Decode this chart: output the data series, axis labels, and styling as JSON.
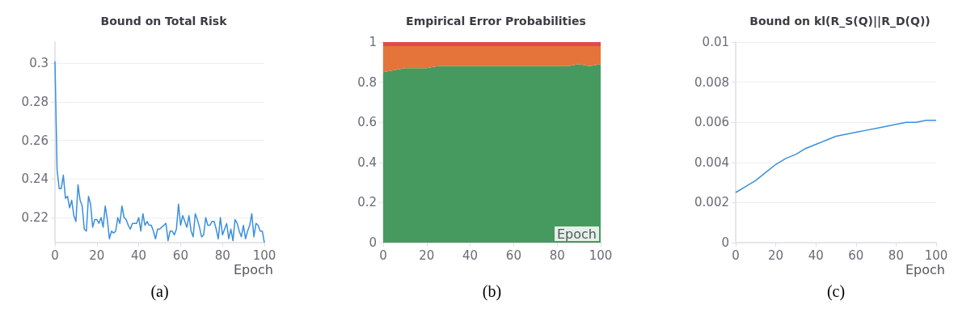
{
  "chart_data": [
    {
      "type": "line",
      "title": "Bound on Total Risk",
      "xlabel": "Epoch",
      "annotations": [
        "(a)"
      ],
      "xlim": [
        0,
        100
      ],
      "xticks": [
        0,
        20,
        40,
        60,
        80,
        100
      ],
      "ylim": [
        0.207,
        0.311
      ],
      "yticks": [
        0.22,
        0.24,
        0.26,
        0.28,
        0.3
      ],
      "grid": "y",
      "marker": "none",
      "line_style": "solid",
      "x": [
        0,
        1,
        2,
        3,
        4,
        5,
        6,
        7,
        8,
        9,
        10,
        11,
        12,
        13,
        14,
        15,
        16,
        17,
        18,
        19,
        20,
        21,
        22,
        23,
        24,
        25,
        26,
        27,
        28,
        29,
        30,
        31,
        32,
        33,
        34,
        35,
        36,
        37,
        38,
        39,
        40,
        41,
        42,
        43,
        44,
        45,
        46,
        47,
        48,
        49,
        50,
        51,
        52,
        53,
        54,
        55,
        56,
        57,
        58,
        59,
        60,
        61,
        62,
        63,
        64,
        65,
        66,
        67,
        68,
        69,
        70,
        71,
        72,
        73,
        74,
        75,
        76,
        77,
        78,
        79,
        80,
        81,
        82,
        83,
        84,
        85,
        86,
        87,
        88,
        89,
        90,
        91,
        92,
        93,
        94,
        95,
        96,
        97,
        98,
        99,
        100
      ],
      "series": [
        {
          "color": "#3b8fdc",
          "values": [
            0.301,
            0.245,
            0.235,
            0.235,
            0.242,
            0.23,
            0.231,
            0.225,
            0.229,
            0.221,
            0.218,
            0.237,
            0.229,
            0.226,
            0.214,
            0.213,
            0.231,
            0.227,
            0.215,
            0.219,
            0.219,
            0.217,
            0.22,
            0.215,
            0.226,
            0.219,
            0.209,
            0.213,
            0.212,
            0.213,
            0.22,
            0.217,
            0.226,
            0.22,
            0.219,
            0.216,
            0.214,
            0.217,
            0.217,
            0.217,
            0.22,
            0.213,
            0.222,
            0.216,
            0.218,
            0.216,
            0.216,
            0.213,
            0.209,
            0.214,
            0.214,
            0.215,
            0.216,
            0.217,
            0.208,
            0.213,
            0.213,
            0.211,
            0.214,
            0.227,
            0.216,
            0.221,
            0.218,
            0.215,
            0.221,
            0.213,
            0.21,
            0.222,
            0.219,
            0.215,
            0.21,
            0.211,
            0.22,
            0.216,
            0.216,
            0.218,
            0.218,
            0.214,
            0.209,
            0.22,
            0.211,
            0.214,
            0.217,
            0.209,
            0.214,
            0.208,
            0.219,
            0.217,
            0.213,
            0.21,
            0.216,
            0.209,
            0.213,
            0.216,
            0.222,
            0.21,
            0.217,
            0.216,
            0.213,
            0.213,
            0.207
          ]
        }
      ]
    },
    {
      "type": "area",
      "stacked": true,
      "title": "Empirical Error Probabilities",
      "xlabel": "Epoch",
      "annotations": [
        "(b)"
      ],
      "xlim": [
        0,
        100
      ],
      "xticks": [
        0,
        20,
        40,
        60,
        80,
        100
      ],
      "ylim": [
        0,
        1
      ],
      "yticks": [
        0,
        0.2,
        0.4,
        0.6,
        0.8,
        1
      ],
      "grid": false,
      "x": [
        0,
        5,
        10,
        15,
        20,
        25,
        30,
        35,
        40,
        45,
        50,
        55,
        60,
        65,
        70,
        75,
        80,
        85,
        90,
        95,
        100
      ],
      "series": [
        {
          "color": "#479a5f",
          "values": [
            0.85,
            0.86,
            0.87,
            0.87,
            0.87,
            0.88,
            0.88,
            0.88,
            0.88,
            0.88,
            0.88,
            0.88,
            0.88,
            0.88,
            0.88,
            0.88,
            0.88,
            0.88,
            0.89,
            0.88,
            0.89
          ]
        },
        {
          "color": "#e4743a",
          "values": [
            0.13,
            0.12,
            0.11,
            0.11,
            0.11,
            0.1,
            0.1,
            0.1,
            0.1,
            0.1,
            0.1,
            0.1,
            0.1,
            0.1,
            0.1,
            0.1,
            0.1,
            0.1,
            0.09,
            0.1,
            0.09
          ]
        },
        {
          "color": "#e04a4a",
          "values": [
            0.02,
            0.02,
            0.02,
            0.02,
            0.02,
            0.02,
            0.02,
            0.02,
            0.02,
            0.02,
            0.02,
            0.02,
            0.02,
            0.02,
            0.02,
            0.02,
            0.02,
            0.02,
            0.02,
            0.02,
            0.02
          ]
        }
      ]
    },
    {
      "type": "line",
      "title": "Bound on kl(R_S(Q)||R_D(Q))",
      "xlabel": "Epoch",
      "annotations": [
        "(c)"
      ],
      "xlim": [
        0,
        100
      ],
      "xticks": [
        0,
        20,
        40,
        60,
        80,
        100
      ],
      "ylim": [
        0,
        0.01
      ],
      "yticks": [
        0,
        0.002,
        0.004,
        0.006,
        0.008,
        0.01
      ],
      "grid": "y",
      "marker": "none",
      "line_style": "solid",
      "x": [
        0,
        5,
        10,
        15,
        20,
        25,
        30,
        35,
        40,
        45,
        50,
        55,
        60,
        65,
        70,
        75,
        80,
        85,
        90,
        95,
        100
      ],
      "series": [
        {
          "color": "#3b8fdc",
          "values": [
            0.0025,
            0.0028,
            0.0031,
            0.0035,
            0.0039,
            0.0042,
            0.0044,
            0.0047,
            0.0049,
            0.0051,
            0.0053,
            0.0054,
            0.0055,
            0.0056,
            0.0057,
            0.0058,
            0.0059,
            0.006,
            0.006,
            0.0061,
            0.0061
          ]
        }
      ]
    }
  ]
}
